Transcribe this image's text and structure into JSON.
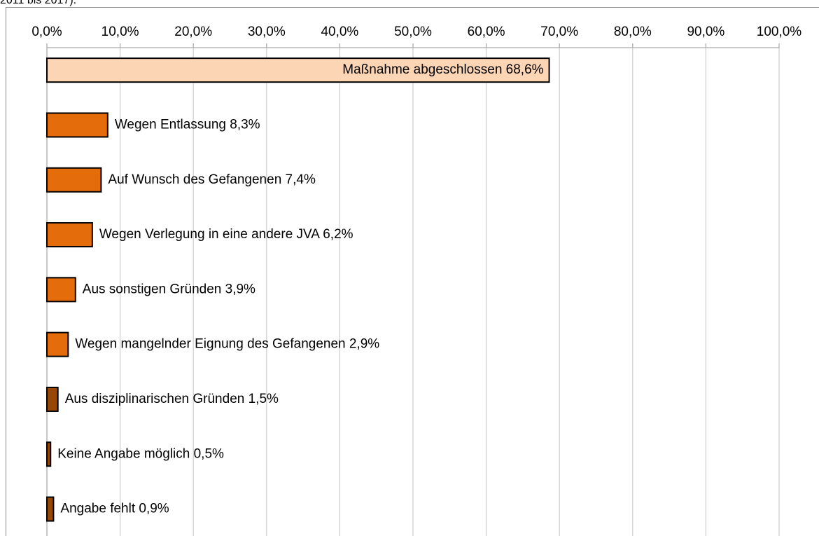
{
  "caption": "2011 bis 2017).",
  "chart_data": {
    "type": "barh",
    "categories": [
      "Maßnahme abgeschlossen",
      "Wegen Entlassung",
      "Auf Wunsch des Gefangenen",
      "Wegen Verlegung in eine andere JVA",
      "Aus sonstigen Gründen",
      "Wegen mangelnder Eignung des Gefangenen",
      "Aus disziplinarischen Gründen",
      "Keine Angabe möglich",
      "Angabe fehlt"
    ],
    "values": [
      68.6,
      8.3,
      7.4,
      6.2,
      3.9,
      2.9,
      1.5,
      0.5,
      0.9
    ],
    "value_labels": [
      "68,6%",
      "8,3%",
      "7,4%",
      "6,2%",
      "3,9%",
      "2,9%",
      "1,5%",
      "0,5%",
      "0,9%"
    ],
    "colors": [
      "#fcd5b5",
      "#e46c0a",
      "#e46c0a",
      "#e46c0a",
      "#e46c0a",
      "#e46c0a",
      "#974806",
      "#974806",
      "#974806"
    ],
    "xlim": [
      0,
      100
    ],
    "xticks": [
      {
        "value": 0,
        "label": "0,0%"
      },
      {
        "value": 10,
        "label": "10,0%"
      },
      {
        "value": 20,
        "label": "20,0%"
      },
      {
        "value": 30,
        "label": "30,0%"
      },
      {
        "value": 40,
        "label": "40,0%"
      },
      {
        "value": 50,
        "label": "50,0%"
      },
      {
        "value": 60,
        "label": "60,0%"
      },
      {
        "value": 70,
        "label": "70,0%"
      },
      {
        "value": 80,
        "label": "80,0%"
      },
      {
        "value": 90,
        "label": "90,0%"
      },
      {
        "value": 100,
        "label": "100,0%"
      }
    ],
    "grid": true
  }
}
